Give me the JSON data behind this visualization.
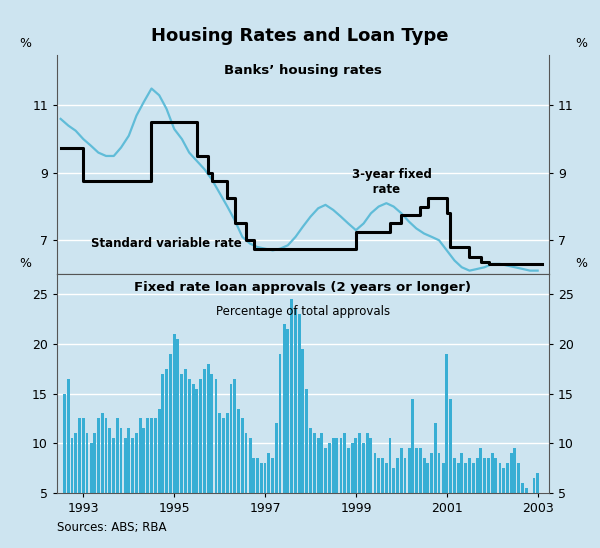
{
  "title": "Housing Rates and Loan Type",
  "background_color": "#cde4f0",
  "top_panel": {
    "title": "Banks’ housing rates",
    "ylabel_left": "%",
    "ylabel_right": "%",
    "ylim": [
      6.0,
      12.5
    ],
    "yticks": [
      7,
      9,
      11
    ],
    "svr_color": "#000000",
    "fixed_color": "#60bcd8",
    "svr_data_x": [
      1992.5,
      1992.5,
      1993.0,
      1993.0,
      1993.5,
      1993.5,
      1994.5,
      1994.5,
      1995.5,
      1995.5,
      1995.75,
      1995.75,
      1995.83,
      1995.83,
      1996.17,
      1996.17,
      1996.33,
      1996.33,
      1996.58,
      1996.58,
      1996.75,
      1996.75,
      1996.92,
      1996.92,
      1997.0,
      1997.0,
      1998.5,
      1998.5,
      1999.0,
      1999.0,
      1999.58,
      1999.58,
      1999.75,
      1999.75,
      2000.0,
      2000.0,
      2000.42,
      2000.42,
      2000.58,
      2000.58,
      2001.0,
      2001.0,
      2001.08,
      2001.08,
      2001.5,
      2001.5,
      2001.75,
      2001.75,
      2001.92,
      2001.92,
      2003.1
    ],
    "svr_data_y": [
      9.75,
      9.75,
      9.75,
      8.75,
      8.75,
      8.75,
      8.75,
      10.5,
      10.5,
      9.5,
      9.5,
      9.0,
      9.0,
      8.75,
      8.75,
      8.25,
      8.25,
      7.5,
      7.5,
      7.0,
      7.0,
      6.75,
      6.75,
      6.75,
      6.75,
      6.75,
      6.75,
      6.75,
      6.75,
      7.25,
      7.25,
      7.25,
      7.25,
      7.5,
      7.5,
      7.75,
      7.75,
      8.0,
      8.0,
      8.25,
      8.25,
      7.8,
      7.8,
      6.8,
      6.8,
      6.5,
      6.5,
      6.35,
      6.35,
      6.3,
      6.3
    ],
    "fixed_rate_x": [
      1992.5,
      1992.67,
      1992.83,
      1993.0,
      1993.17,
      1993.33,
      1993.5,
      1993.67,
      1993.83,
      1994.0,
      1994.17,
      1994.33,
      1994.5,
      1994.67,
      1994.83,
      1995.0,
      1995.17,
      1995.33,
      1995.5,
      1995.67,
      1995.83,
      1996.0,
      1996.17,
      1996.33,
      1996.5,
      1996.67,
      1996.83,
      1997.0,
      1997.17,
      1997.33,
      1997.5,
      1997.67,
      1997.83,
      1998.0,
      1998.17,
      1998.33,
      1998.5,
      1998.67,
      1998.83,
      1999.0,
      1999.17,
      1999.33,
      1999.5,
      1999.67,
      1999.83,
      2000.0,
      2000.17,
      2000.33,
      2000.5,
      2000.67,
      2000.83,
      2001.0,
      2001.17,
      2001.33,
      2001.5,
      2001.67,
      2001.83,
      2002.0,
      2002.17,
      2002.33,
      2002.5,
      2002.67,
      2002.83,
      2003.0
    ],
    "fixed_rate_y": [
      10.6,
      10.4,
      10.25,
      10.0,
      9.8,
      9.6,
      9.5,
      9.5,
      9.75,
      10.1,
      10.7,
      11.1,
      11.5,
      11.3,
      10.9,
      10.3,
      10.0,
      9.6,
      9.35,
      9.1,
      8.8,
      8.4,
      8.0,
      7.6,
      7.1,
      6.9,
      6.8,
      6.75,
      6.7,
      6.75,
      6.85,
      7.1,
      7.4,
      7.7,
      7.95,
      8.05,
      7.9,
      7.7,
      7.5,
      7.3,
      7.5,
      7.8,
      8.0,
      8.1,
      8.0,
      7.8,
      7.55,
      7.35,
      7.2,
      7.1,
      7.0,
      6.7,
      6.4,
      6.2,
      6.1,
      6.15,
      6.2,
      6.3,
      6.3,
      6.25,
      6.2,
      6.15,
      6.1,
      6.1
    ]
  },
  "bottom_panel": {
    "title": "Fixed rate loan approvals (2 years or longer)",
    "subtitle": "Percentage of total approvals",
    "ylabel_left": "%",
    "ylabel_right": "%",
    "ylim": [
      5,
      27
    ],
    "yticks": [
      5,
      10,
      15,
      20,
      25
    ],
    "bar_color": "#38aed4",
    "bar_data_x": [
      1992.58,
      1992.67,
      1992.75,
      1992.83,
      1992.92,
      1993.0,
      1993.08,
      1993.17,
      1993.25,
      1993.33,
      1993.42,
      1993.5,
      1993.58,
      1993.67,
      1993.75,
      1993.83,
      1993.92,
      1994.0,
      1994.08,
      1994.17,
      1994.25,
      1994.33,
      1994.42,
      1994.5,
      1994.58,
      1994.67,
      1994.75,
      1994.83,
      1994.92,
      1995.0,
      1995.08,
      1995.17,
      1995.25,
      1995.33,
      1995.42,
      1995.5,
      1995.58,
      1995.67,
      1995.75,
      1995.83,
      1995.92,
      1996.0,
      1996.08,
      1996.17,
      1996.25,
      1996.33,
      1996.42,
      1996.5,
      1996.58,
      1996.67,
      1996.75,
      1996.83,
      1996.92,
      1997.0,
      1997.08,
      1997.17,
      1997.25,
      1997.33,
      1997.42,
      1997.5,
      1997.58,
      1997.67,
      1997.75,
      1997.83,
      1997.92,
      1998.0,
      1998.08,
      1998.17,
      1998.25,
      1998.33,
      1998.42,
      1998.5,
      1998.58,
      1998.67,
      1998.75,
      1998.83,
      1998.92,
      1999.0,
      1999.08,
      1999.17,
      1999.25,
      1999.33,
      1999.42,
      1999.5,
      1999.58,
      1999.67,
      1999.75,
      1999.83,
      1999.92,
      2000.0,
      2000.08,
      2000.17,
      2000.25,
      2000.33,
      2000.42,
      2000.5,
      2000.58,
      2000.67,
      2000.75,
      2000.83,
      2000.92,
      2001.0,
      2001.08,
      2001.17,
      2001.25,
      2001.33,
      2001.42,
      2001.5,
      2001.58,
      2001.67,
      2001.75,
      2001.83,
      2001.92,
      2002.0,
      2002.08,
      2002.17,
      2002.25,
      2002.33,
      2002.42,
      2002.5,
      2002.58,
      2002.67,
      2002.75,
      2002.83,
      2002.92,
      2003.0
    ],
    "bar_data_y": [
      15.0,
      16.5,
      10.5,
      11.0,
      12.5,
      12.5,
      11.0,
      10.0,
      11.0,
      12.5,
      13.0,
      12.5,
      11.5,
      10.5,
      12.5,
      11.5,
      10.5,
      11.5,
      10.5,
      11.0,
      12.5,
      11.5,
      12.5,
      12.5,
      12.5,
      13.5,
      17.0,
      17.5,
      19.0,
      21.0,
      20.5,
      17.0,
      17.5,
      16.5,
      16.0,
      15.5,
      16.5,
      17.5,
      18.0,
      17.0,
      16.5,
      13.0,
      12.5,
      13.0,
      16.0,
      16.5,
      13.5,
      12.5,
      11.0,
      10.5,
      8.5,
      8.5,
      8.0,
      8.0,
      9.0,
      8.5,
      12.0,
      19.0,
      22.0,
      21.5,
      24.5,
      23.5,
      23.0,
      19.5,
      15.5,
      11.5,
      11.0,
      10.5,
      11.0,
      9.5,
      10.0,
      10.5,
      10.5,
      10.5,
      11.0,
      9.5,
      10.0,
      10.5,
      11.0,
      10.0,
      11.0,
      10.5,
      9.0,
      8.5,
      8.5,
      8.0,
      10.5,
      7.5,
      8.5,
      9.5,
      8.5,
      9.5,
      14.5,
      9.5,
      9.5,
      8.5,
      8.0,
      9.0,
      12.0,
      9.0,
      8.0,
      19.0,
      14.5,
      8.5,
      8.0,
      9.0,
      8.0,
      8.5,
      8.0,
      8.5,
      9.5,
      8.5,
      8.5,
      9.0,
      8.5,
      8.0,
      7.5,
      8.0,
      9.0,
      9.5,
      8.0,
      6.0,
      5.5,
      5.0,
      6.5,
      7.0
    ]
  },
  "xlim": [
    1992.42,
    2003.25
  ],
  "xticks": [
    1993,
    1995,
    1997,
    1999,
    2001,
    2003
  ],
  "xticklabels": [
    "1993",
    "1995",
    "1997",
    "1999",
    "2001",
    "2003"
  ],
  "source": "Sources: ABS; RBA"
}
